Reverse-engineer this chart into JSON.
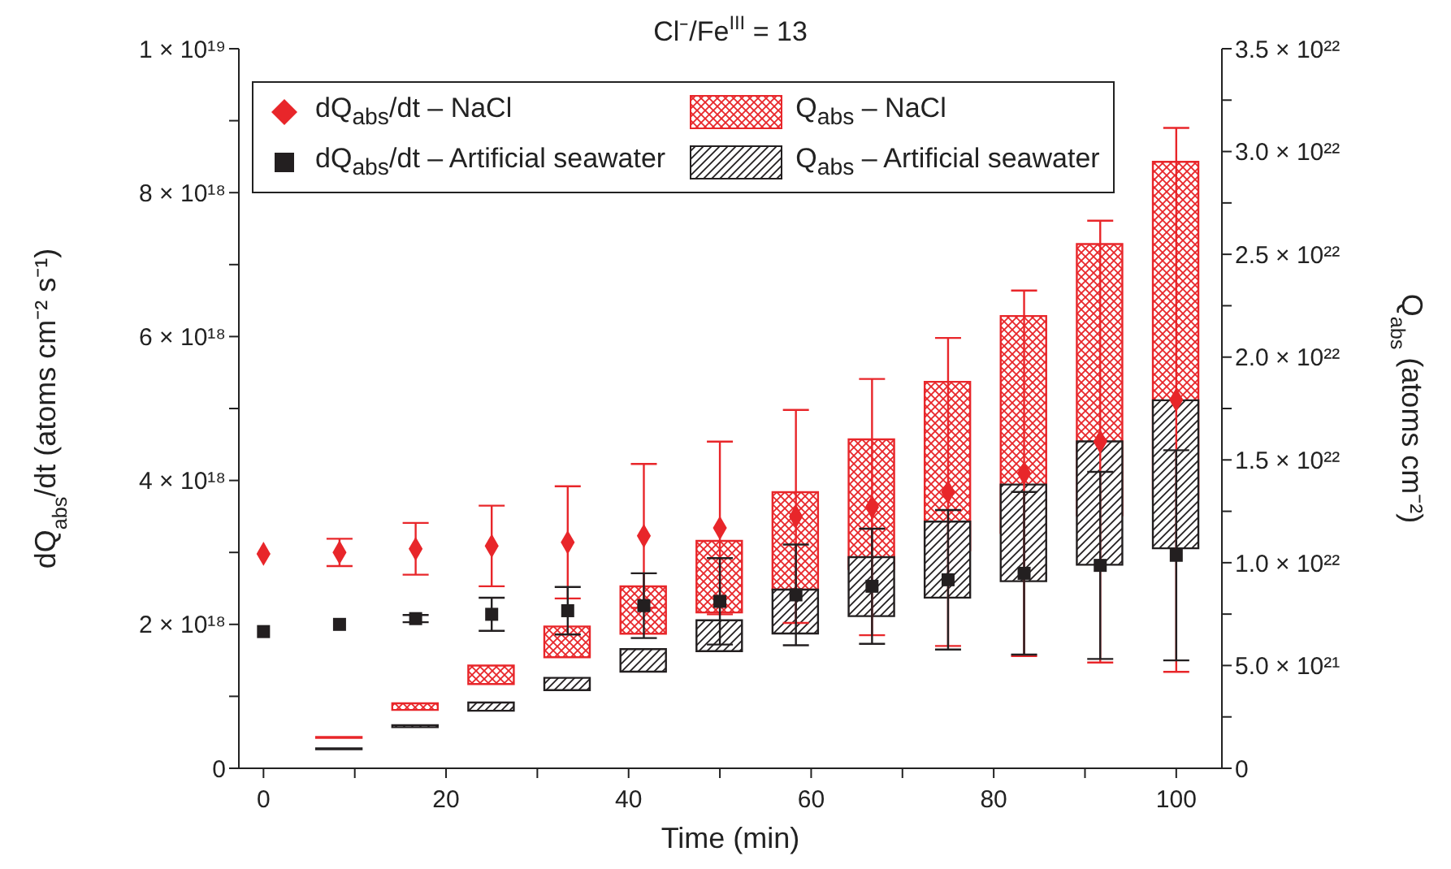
{
  "chart_data": {
    "type": "scatter",
    "title": "Cl⁻/Fe$^{III}$ = 13",
    "xlabel": "Time (min)",
    "ylabel": "dQ$_{abs}$/dt (atoms cm⁻² s⁻¹)",
    "y2label": "Q$_{abs}$ (atoms cm⁻²)",
    "x": [
      0,
      8.33,
      16.67,
      25,
      33.33,
      41.67,
      50,
      58.33,
      66.67,
      75,
      83.33,
      91.67,
      100
    ],
    "series": [
      {
        "name": "dQ$_{abs}$/dt – NaCl",
        "marker": "diamond",
        "color": "#e8262a",
        "values": [
          2.98e+18,
          3e+18,
          3.05e+18,
          3.09e+18,
          3.14e+18,
          3.23e+18,
          3.34e+18,
          3.5e+18,
          3.63e+18,
          3.84e+18,
          4.1e+18,
          4.54e+18,
          5.12e+18
        ],
        "errors": [
          null,
          1.9e+17,
          3.6e+17,
          5.6e+17,
          7.8e+17,
          1e+18,
          1.2e+18,
          1.48e+18,
          1.78e+18,
          2.14e+18,
          2.54e+18,
          3.07e+18,
          3.78e+18
        ]
      },
      {
        "name": "dQ$_{abs}$/dt – Artificial seawater",
        "marker": "square",
        "color": "#231f20",
        "values": [
          1.9e+18,
          2e+18,
          2.08e+18,
          2.14e+18,
          2.19e+18,
          2.26e+18,
          2.32e+18,
          2.41e+18,
          2.53e+18,
          2.62e+18,
          2.71e+18,
          2.82e+18,
          2.96e+18
        ],
        "errors": [
          null,
          null,
          5e+16,
          2.3e+17,
          3.3e+17,
          4.5e+17,
          6e+17,
          7e+17,
          8e+17,
          9.7e+17,
          1.13e+18,
          1.3e+18,
          1.46e+18
        ]
      },
      {
        "name": "Q$_{abs}$ – NaCl",
        "type": "bar",
        "axis": "y2",
        "color": "#e8262a",
        "base": [
          null,
          1.48e+21,
          2.84e+21,
          4.1e+21,
          5.4e+21,
          6.55e+21,
          7.58e+21,
          8.69e+21,
          9.7e+21,
          1.06e+22,
          1.145e+22,
          1.23e+22,
          1.31e+22
        ],
        "values": [
          null,
          4e+19,
          3.2e+20,
          9e+20,
          1.5e+21,
          2.3e+21,
          3.48e+21,
          4.74e+21,
          6.3e+21,
          8.2e+21,
          1.055e+22,
          1.32e+22,
          1.64e+22
        ]
      },
      {
        "name": "Q$_{abs}$ – Artificial seawater",
        "type": "bar",
        "axis": "y2",
        "color": "#231f20",
        "base": [
          null,
          9.3e+20,
          2e+21,
          2.8e+21,
          3.8e+21,
          4.7e+21,
          5.7e+21,
          6.56e+21,
          7.4e+21,
          8.3e+21,
          9.1e+21,
          9.9e+21,
          1.07e+22
        ],
        "values": [
          null,
          4e+19,
          1e+20,
          4e+20,
          6e+20,
          1.1e+21,
          1.5e+21,
          2.13e+21,
          2.87e+21,
          3.7e+21,
          4.7e+21,
          6e+21,
          7.2e+21
        ]
      }
    ],
    "xlim": [
      -2.7,
      105
    ],
    "xticks": [
      0,
      {
        "value": 10,
        "label": null
      },
      20,
      {
        "value": 30,
        "label": null
      },
      40,
      {
        "value": 50,
        "label": null
      },
      60,
      {
        "value": 70,
        "label": null
      },
      80,
      {
        "value": 90,
        "label": null
      },
      100
    ],
    "ylim": [
      0,
      1e+19
    ],
    "yticks": [
      {
        "value": 0,
        "label": "0"
      },
      {
        "value": 1e+18,
        "label": null
      },
      {
        "value": 2e+18,
        "label": "2 × 10¹⁸"
      },
      {
        "value": 3e+18,
        "label": null
      },
      {
        "value": 4e+18,
        "label": "4 × 10¹⁸"
      },
      {
        "value": 5e+18,
        "label": null
      },
      {
        "value": 6e+18,
        "label": "6 × 10¹⁸"
      },
      {
        "value": 7e+18,
        "label": null
      },
      {
        "value": 8e+18,
        "label": "8 × 10¹⁸"
      },
      {
        "value": 9e+18,
        "label": null
      },
      {
        "value": 1e+19,
        "label": "1 × 10¹⁹"
      }
    ],
    "y2lim": [
      0,
      3.5e+22
    ],
    "y2ticks": [
      {
        "value": 0,
        "label": "0"
      },
      {
        "value": 2.5e+21,
        "label": null
      },
      {
        "value": 5e+21,
        "label": "5.0 × 10²¹"
      },
      {
        "value": 7.5e+21,
        "label": null
      },
      {
        "value": 1e+22,
        "label": "1.0 × 10²²"
      },
      {
        "value": 1.25e+22,
        "label": null
      },
      {
        "value": 1.5e+22,
        "label": "1.5 × 10²²"
      },
      {
        "value": 1.75e+22,
        "label": null
      },
      {
        "value": 2e+22,
        "label": "2.0 × 10²²"
      },
      {
        "value": 2.25e+22,
        "label": null
      },
      {
        "value": 2.5e+22,
        "label": "2.5 × 10²²"
      },
      {
        "value": 2.75e+22,
        "label": null
      },
      {
        "value": 3e+22,
        "label": "3.0 × 10²²"
      },
      {
        "value": 3.25e+22,
        "label": null
      },
      {
        "value": 3.5e+22,
        "label": "3.5 × 10²²"
      }
    ],
    "legend": "top left"
  }
}
